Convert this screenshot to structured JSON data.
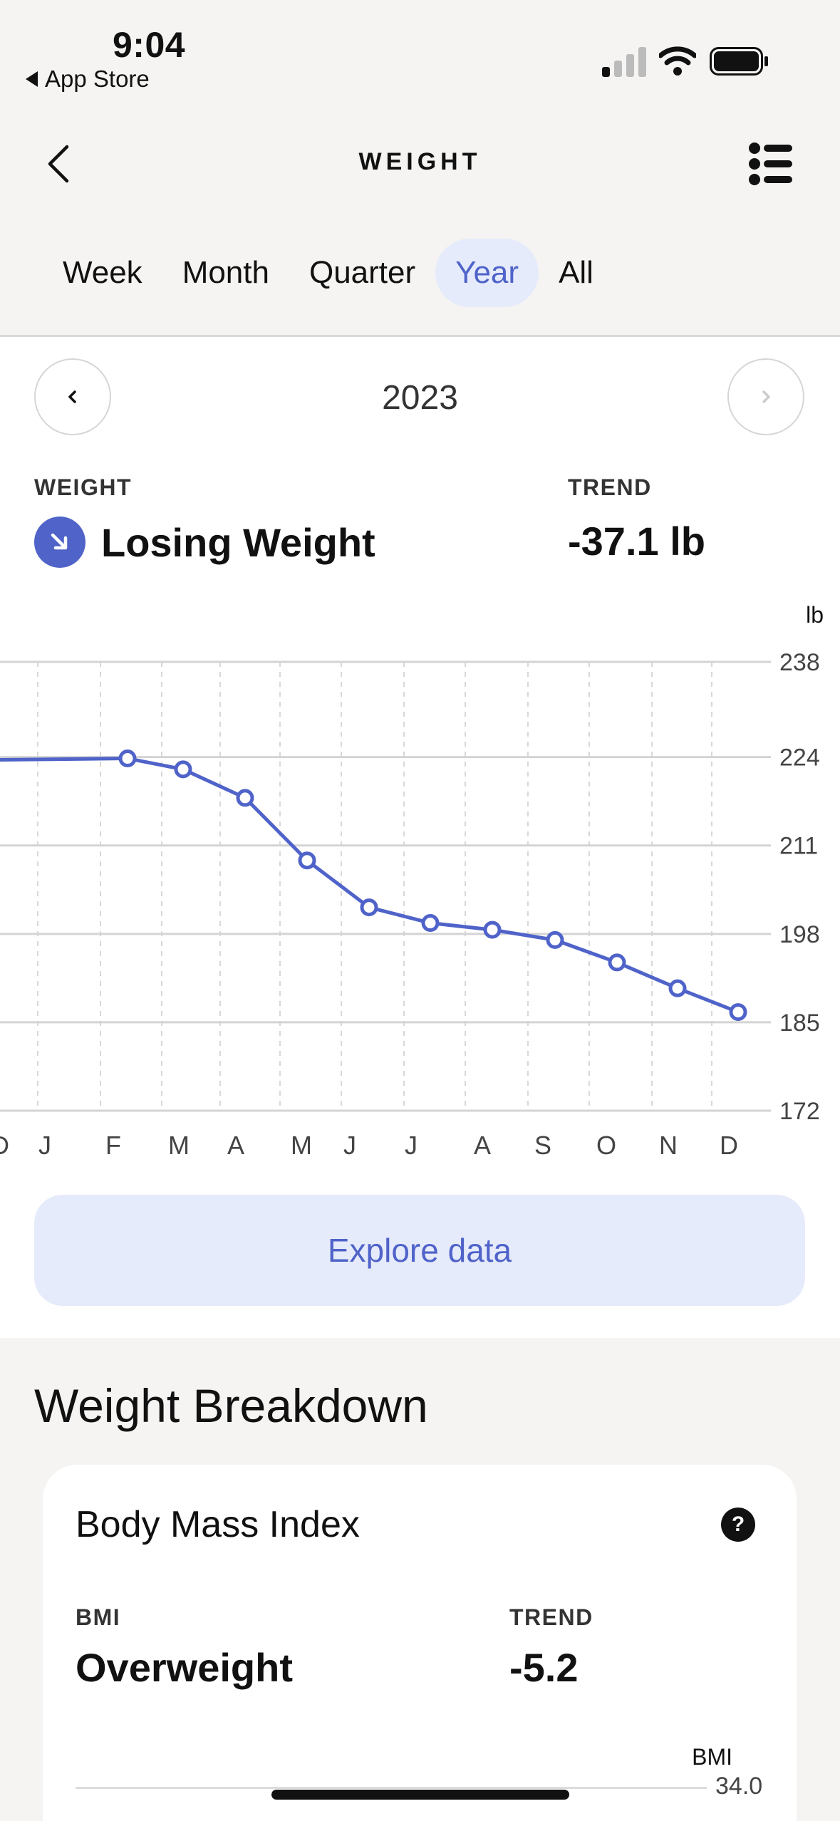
{
  "status_bar": {
    "time": "9:04",
    "back_app": "App Store"
  },
  "nav": {
    "title": "WEIGHT"
  },
  "tabs": [
    {
      "label": "Week",
      "active": false
    },
    {
      "label": "Month",
      "active": false
    },
    {
      "label": "Quarter",
      "active": false
    },
    {
      "label": "Year",
      "active": true
    },
    {
      "label": "All",
      "active": false
    }
  ],
  "period": {
    "year": "2023"
  },
  "summary": {
    "weight_label": "WEIGHT",
    "weight_status": "Losing Weight",
    "trend_label": "TREND",
    "trend_value": "-37.1 lb"
  },
  "chart_data": {
    "type": "line",
    "unit": "lb",
    "ylim": [
      172,
      238
    ],
    "y_ticks": [
      "238",
      "224",
      "211",
      "198",
      "185",
      "172"
    ],
    "x_ticks": [
      "D",
      "J",
      "F",
      "M",
      "A",
      "M",
      "J",
      "J",
      "A",
      "S",
      "O",
      "N",
      "D"
    ],
    "series": [
      {
        "values": [
          {
            "x": "Jan 1",
            "y": 223.6
          },
          {
            "x": "Feb",
            "y": 223.8
          },
          {
            "x": "Mar",
            "y": 222.2
          },
          {
            "x": "Apr",
            "y": 218.0
          },
          {
            "x": "May",
            "y": 208.8
          },
          {
            "x": "Jun",
            "y": 201.9
          },
          {
            "x": "Jul",
            "y": 199.6
          },
          {
            "x": "Aug",
            "y": 198.6
          },
          {
            "x": "Sep",
            "y": 197.1
          },
          {
            "x": "Oct",
            "y": 193.8
          },
          {
            "x": "Nov",
            "y": 190.0
          },
          {
            "x": "Dec",
            "y": 186.5
          }
        ]
      }
    ],
    "color": "#4f63c9",
    "grid": true
  },
  "explore_label": "Explore data",
  "breakdown": {
    "title": "Weight Breakdown",
    "bmi_card": {
      "title": "Body Mass Index",
      "help": "?",
      "bmi_label": "BMI",
      "bmi_value": "Overweight",
      "trend_label": "TREND",
      "trend_value": "-5.2",
      "unit": "BMI",
      "tick": "34.0"
    }
  }
}
